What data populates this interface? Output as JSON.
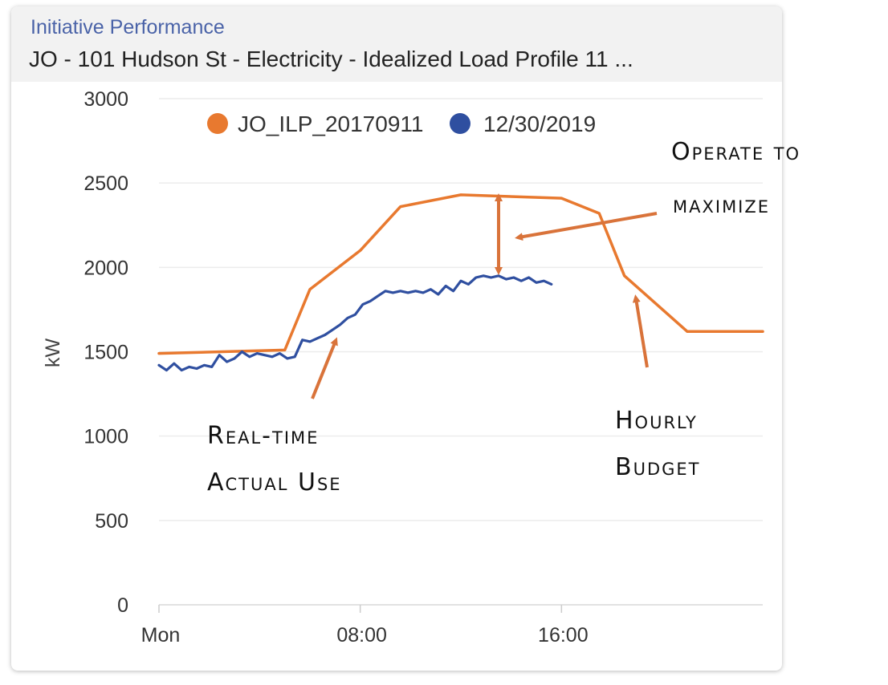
{
  "header": {
    "category": "Initiative Performance",
    "title": "JO - 101 Hudson St - Electricity - Idealized Load Profile 11 ..."
  },
  "colors": {
    "budget": "#e8792f",
    "actual": "#2f4fa0",
    "grid": "#ececec",
    "arrow": "#d9733a"
  },
  "chart_data": {
    "type": "line",
    "title": "",
    "xlabel": "",
    "ylabel": "kW",
    "ylim": [
      0,
      3000
    ],
    "xlim": [
      0,
      24
    ],
    "yticks": [
      0,
      500,
      1000,
      1500,
      2000,
      2500,
      3000
    ],
    "xticks": [
      {
        "value": 0,
        "label": "Mon"
      },
      {
        "value": 8,
        "label": "08:00"
      },
      {
        "value": 16,
        "label": "16:00"
      }
    ],
    "grid": true,
    "legend": "top",
    "series": [
      {
        "name": "JO_ILP_20170911",
        "color": "#e8792f",
        "x": [
          0,
          5,
          6,
          8,
          9.6,
          12,
          16,
          17.5,
          18.5,
          21,
          24
        ],
        "y": [
          1490,
          1510,
          1870,
          2100,
          2360,
          2430,
          2410,
          2320,
          1950,
          1620,
          1620
        ]
      },
      {
        "name": "12/30/2019",
        "color": "#2f4fa0",
        "x": [
          0,
          0.3,
          0.6,
          0.9,
          1.2,
          1.5,
          1.8,
          2.1,
          2.4,
          2.7,
          3.0,
          3.3,
          3.6,
          3.9,
          4.2,
          4.5,
          4.8,
          5.1,
          5.4,
          5.7,
          6.0,
          6.3,
          6.6,
          6.9,
          7.2,
          7.5,
          7.8,
          8.1,
          8.4,
          8.7,
          9.0,
          9.3,
          9.6,
          9.9,
          10.2,
          10.5,
          10.8,
          11.1,
          11.4,
          11.7,
          12.0,
          12.3,
          12.6,
          12.9,
          13.2,
          13.5,
          13.8,
          14.1,
          14.4,
          14.7,
          15.0,
          15.3,
          15.6
        ],
        "y": [
          1420,
          1390,
          1430,
          1390,
          1410,
          1400,
          1420,
          1410,
          1480,
          1440,
          1460,
          1500,
          1470,
          1490,
          1480,
          1470,
          1490,
          1460,
          1470,
          1570,
          1560,
          1580,
          1600,
          1630,
          1660,
          1700,
          1720,
          1780,
          1800,
          1830,
          1860,
          1850,
          1860,
          1850,
          1860,
          1850,
          1870,
          1840,
          1890,
          1860,
          1920,
          1900,
          1940,
          1950,
          1940,
          1950,
          1930,
          1940,
          1920,
          1940,
          1910,
          1920,
          1900
        ]
      }
    ],
    "annotations": [
      {
        "id": "maximize",
        "lines": [
          "Operate to",
          "maximize"
        ]
      },
      {
        "id": "actual",
        "lines": [
          "Real-time",
          "Actual Use"
        ]
      },
      {
        "id": "budget",
        "lines": [
          "Hourly",
          "Budget"
        ]
      }
    ]
  }
}
